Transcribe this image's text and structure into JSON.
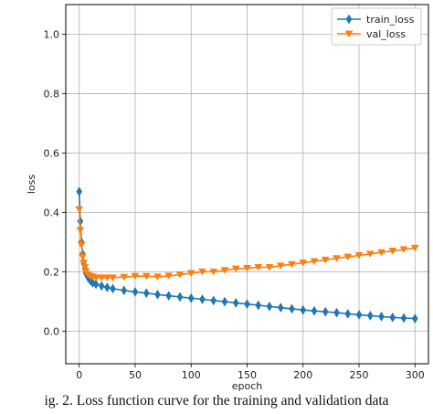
{
  "chart_data": {
    "type": "line",
    "xlabel": "epoch",
    "ylabel": "loss",
    "xlim": [
      -12,
      312
    ],
    "ylim": [
      -0.11,
      1.1
    ],
    "x_ticks": [
      0,
      50,
      100,
      150,
      200,
      250,
      300
    ],
    "y_ticks": [
      0.0,
      0.2,
      0.4,
      0.6,
      0.8,
      1.0
    ],
    "grid": true,
    "legend_position": "top-right",
    "series": [
      {
        "name": "train_loss",
        "color": "#1f77b4",
        "marker": "diamond",
        "x": [
          0,
          1,
          2,
          3,
          4,
          5,
          6,
          8,
          10,
          12,
          15,
          20,
          25,
          30,
          40,
          50,
          60,
          70,
          80,
          90,
          100,
          110,
          120,
          130,
          140,
          150,
          160,
          170,
          180,
          190,
          200,
          210,
          220,
          230,
          240,
          250,
          260,
          270,
          280,
          290,
          300
        ],
        "y": [
          0.47,
          0.37,
          0.3,
          0.26,
          0.23,
          0.21,
          0.195,
          0.18,
          0.17,
          0.163,
          0.158,
          0.152,
          0.147,
          0.143,
          0.137,
          0.132,
          0.128,
          0.123,
          0.119,
          0.115,
          0.111,
          0.107,
          0.103,
          0.099,
          0.095,
          0.091,
          0.087,
          0.083,
          0.079,
          0.075,
          0.071,
          0.068,
          0.065,
          0.062,
          0.058,
          0.055,
          0.052,
          0.049,
          0.046,
          0.044,
          0.042
        ]
      },
      {
        "name": "val_loss",
        "color": "#ff7f0e",
        "marker": "triangle-down",
        "x": [
          0,
          1,
          2,
          3,
          4,
          5,
          6,
          8,
          10,
          12,
          15,
          20,
          25,
          30,
          40,
          50,
          60,
          70,
          80,
          90,
          100,
          110,
          120,
          130,
          140,
          150,
          160,
          170,
          180,
          190,
          200,
          210,
          220,
          230,
          240,
          250,
          260,
          270,
          280,
          290,
          300
        ],
        "y": [
          0.41,
          0.34,
          0.29,
          0.25,
          0.23,
          0.215,
          0.2,
          0.19,
          0.185,
          0.183,
          0.18,
          0.18,
          0.18,
          0.18,
          0.182,
          0.185,
          0.185,
          0.183,
          0.186,
          0.19,
          0.195,
          0.2,
          0.2,
          0.205,
          0.21,
          0.212,
          0.215,
          0.215,
          0.22,
          0.225,
          0.23,
          0.235,
          0.24,
          0.245,
          0.25,
          0.255,
          0.26,
          0.265,
          0.27,
          0.275,
          0.28
        ]
      }
    ]
  },
  "caption": "ig. 2.   Loss function curve for the training and validation data"
}
